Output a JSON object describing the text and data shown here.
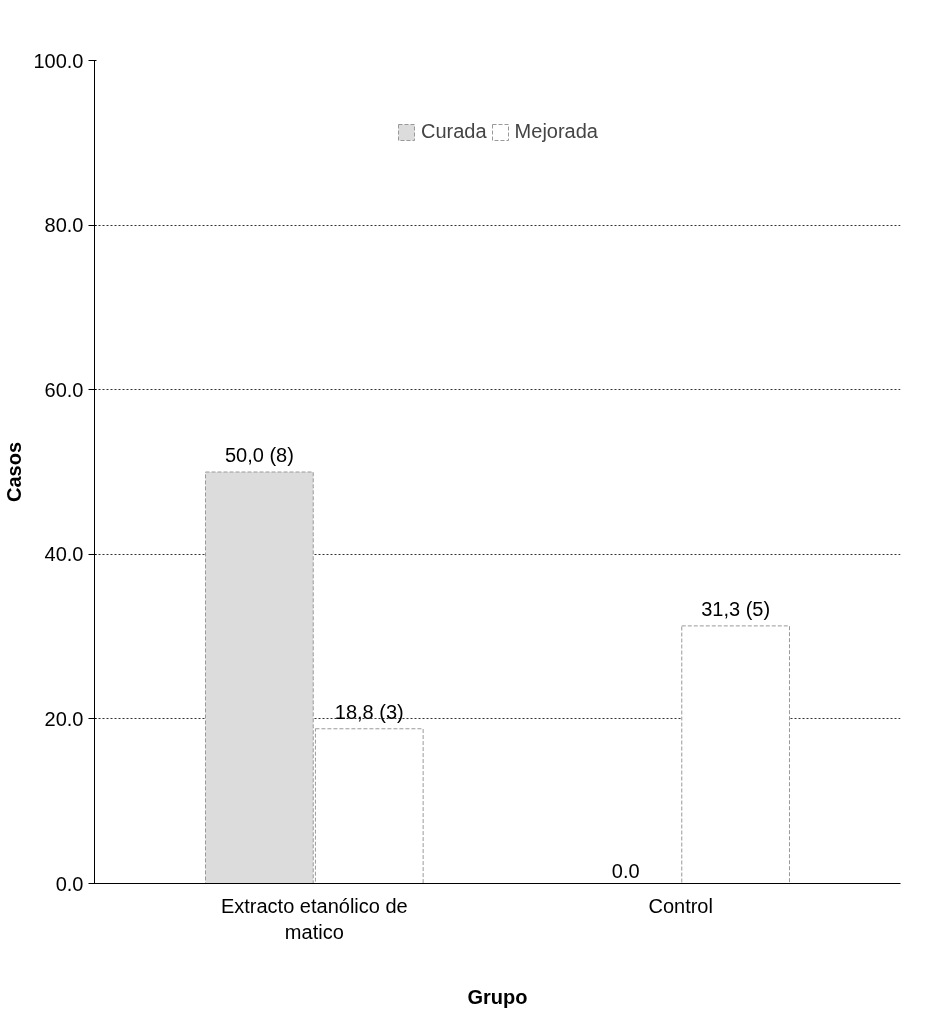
{
  "chart_data": {
    "type": "bar",
    "xlabel": "Grupo",
    "ylabel": "Casos",
    "categories": [
      "Extracto etanólico de matico",
      "Control"
    ],
    "series": [
      {
        "name": "Curada",
        "color": "#dcdcdc",
        "values": [
          50.0,
          0.0
        ],
        "value_labels": [
          "50,0 (8)",
          "0.0"
        ]
      },
      {
        "name": "Mejorada",
        "color": "#ffffff",
        "values": [
          18.8,
          31.3
        ],
        "value_labels": [
          "18,8 (3)",
          "31,3 (5)"
        ]
      }
    ],
    "ylim": [
      0,
      100
    ],
    "yticks": [
      {
        "value": 0,
        "label": "0.0"
      },
      {
        "value": 20,
        "label": "20.0"
      },
      {
        "value": 40,
        "label": "40.0"
      },
      {
        "value": 60,
        "label": "60.0"
      },
      {
        "value": 80,
        "label": "80.0"
      },
      {
        "value": 100,
        "label": "100.0"
      }
    ],
    "grid": "y",
    "legend": "top"
  }
}
